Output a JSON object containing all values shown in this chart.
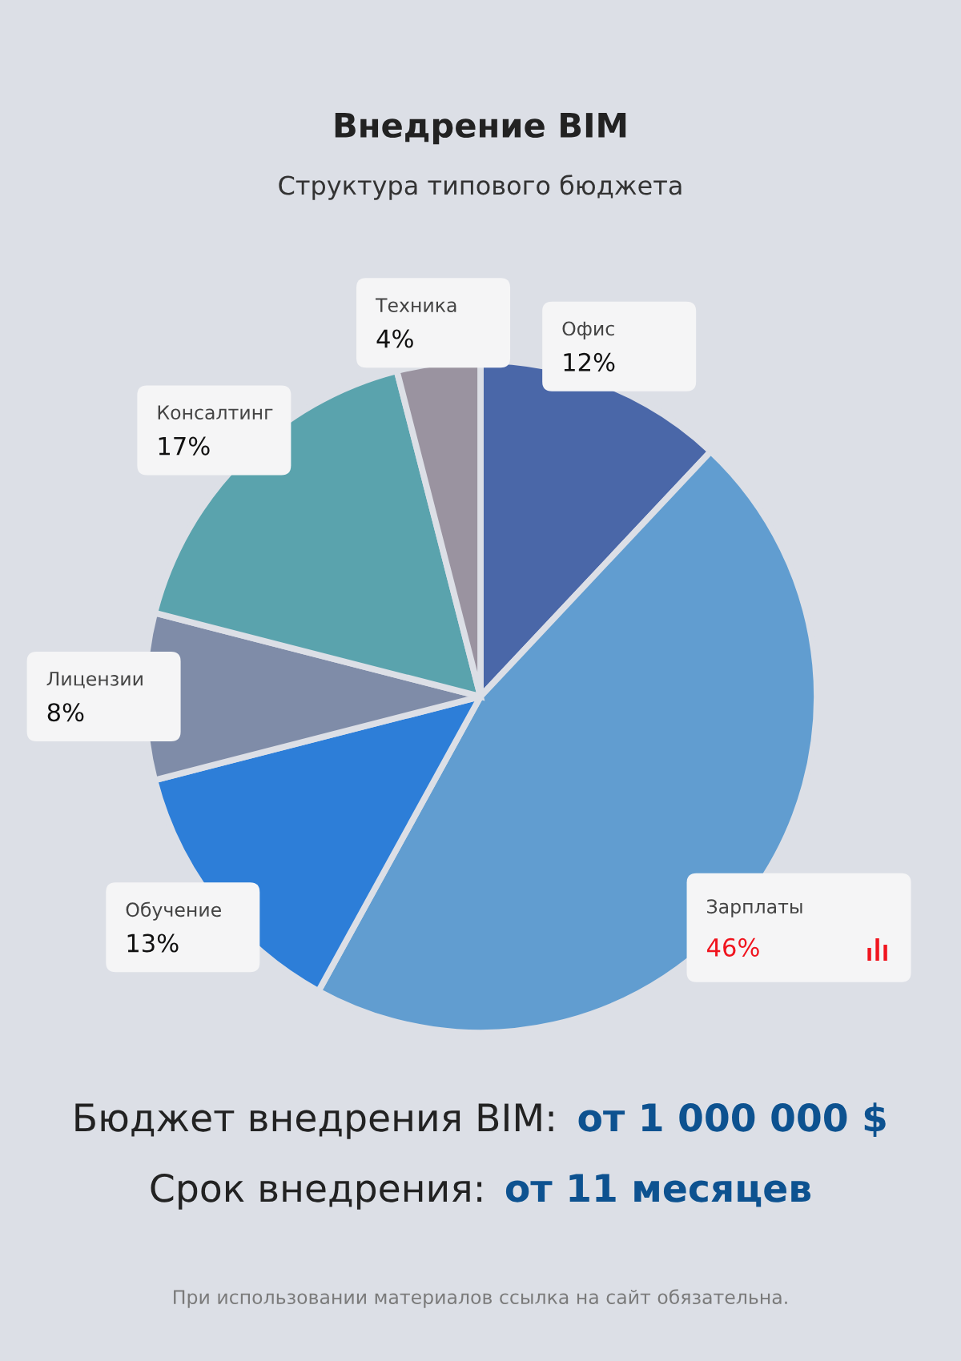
{
  "chart_data": {
    "type": "pie",
    "title": "Внедрение BIM",
    "subtitle": "Структура типового бюджета",
    "categories": [
      "Офис",
      "Зарплаты",
      "Обучение",
      "Лицензии",
      "Консалтинг",
      "Техника"
    ],
    "values": [
      12,
      46,
      13,
      8,
      17,
      4
    ],
    "colors": [
      "#4a67a8",
      "#619dd0",
      "#2d7ed8",
      "#7f8ca8",
      "#5aa3ad",
      "#9a93a0"
    ],
    "value_labels": [
      "12%",
      "46%",
      "13%",
      "8%",
      "17%",
      "4%"
    ],
    "annotations": [
      "Бюджет внедрения BIM:",
      "от 1 000 000 $",
      "Срок внедрения:",
      "от 11 месяцев",
      "При использовании материалов ссылка на сайт обязательна."
    ]
  }
}
